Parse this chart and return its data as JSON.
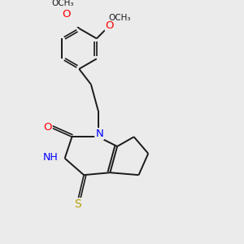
{
  "background_color": "#ebebeb",
  "bond_color": "#1a1a1a",
  "atom_colors": {
    "N": "#0000ff",
    "O": "#ff0000",
    "S": "#b8a000",
    "C": "#1a1a1a"
  },
  "lw_single": 1.4,
  "lw_double": 1.2,
  "font_size_atom": 8.5,
  "figsize": [
    3.0,
    3.0
  ],
  "dpi": 100,
  "xlim": [
    -1.5,
    5.5
  ],
  "ylim": [
    -3.5,
    5.5
  ]
}
